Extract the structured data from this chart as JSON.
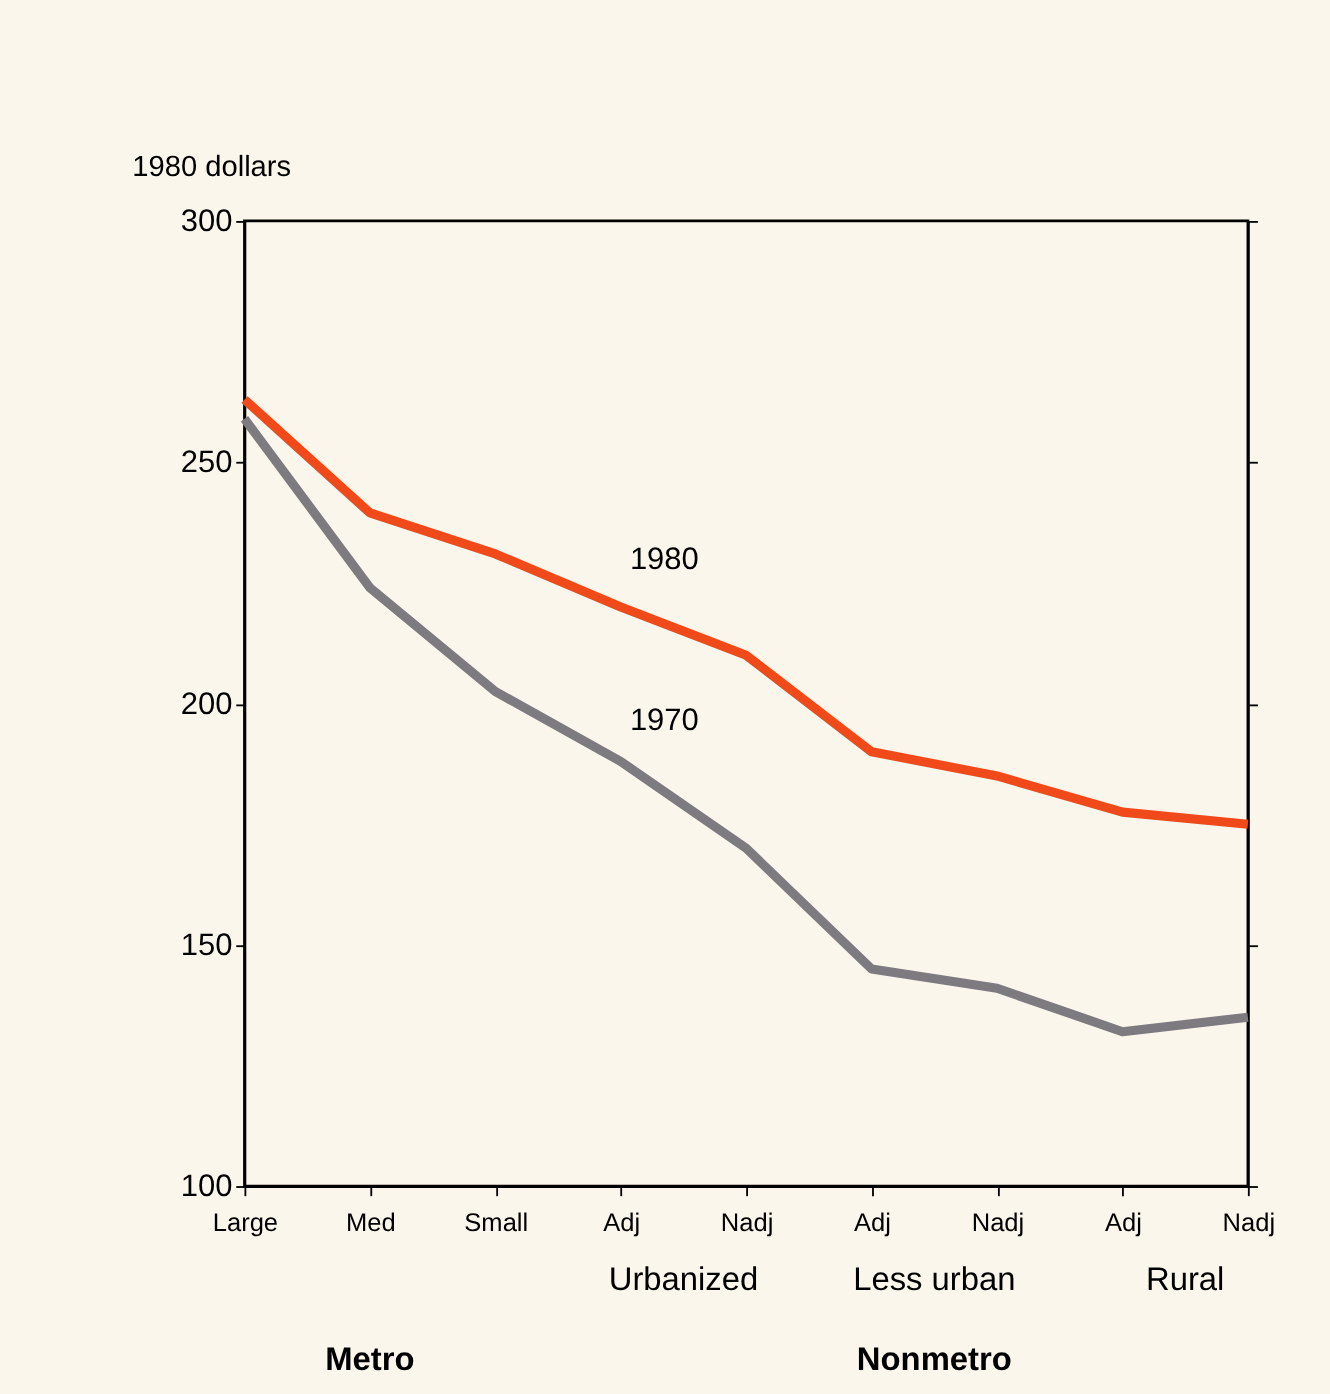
{
  "chart_data": {
    "type": "line",
    "ylabel": "1980 dollars",
    "categories": [
      "Large",
      "Med",
      "Small",
      "Adj",
      "Nadj",
      "Adj",
      "Nadj",
      "Adj",
      "Nadj"
    ],
    "series": [
      {
        "name": "1980",
        "color": "#f04a1a",
        "values": [
          263,
          239.5,
          231,
          220,
          210,
          190,
          185,
          177.5,
          175
        ]
      },
      {
        "name": "1970",
        "color": "#7d7a80",
        "values": [
          259,
          224,
          202.5,
          188,
          170,
          145,
          141,
          132,
          135
        ]
      }
    ],
    "ylim": [
      100,
      300
    ],
    "yticks": [
      100,
      150,
      200,
      250,
      300
    ],
    "grid": false,
    "legend": false,
    "marker": "none",
    "line_style": "solid",
    "annotations": [
      "Urbanized",
      "Less urban",
      "Rural",
      "Metro",
      "Nonmetro"
    ]
  }
}
